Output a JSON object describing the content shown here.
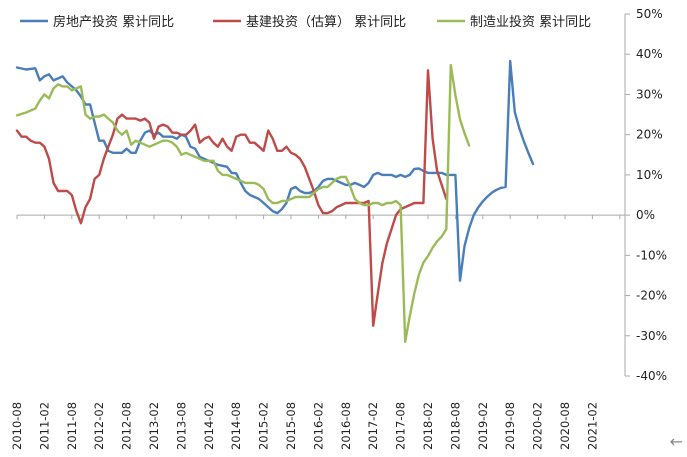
{
  "chart_data": {
    "type": "line",
    "x_ticks": [
      "2010-08",
      "2011-02",
      "2011-08",
      "2012-02",
      "2012-08",
      "2013-02",
      "2013-08",
      "2014-02",
      "2014-08",
      "2015-02",
      "2015-08",
      "2016-02",
      "2016-08",
      "2017-02",
      "2017-08",
      "2018-02",
      "2018-08",
      "2019-02",
      "2019-08",
      "2020-02",
      "2020-08",
      "2021-02"
    ],
    "y_ticks": [
      "50%",
      "40%",
      "30%",
      "20%",
      "10%",
      "0%",
      "-10%",
      "-20%",
      "-30%",
      "-40%"
    ],
    "ylim": [
      -40,
      50
    ],
    "yaxis_position": "right",
    "grid": false,
    "legend_position": "top",
    "series": [
      {
        "name": "房地产投资 累计同比",
        "color": "#4a7ebb",
        "points": [
          [
            0,
            36.7
          ],
          [
            2,
            36.2
          ],
          [
            4,
            36.5
          ],
          [
            5,
            33.5
          ],
          [
            6,
            34.5
          ],
          [
            7,
            35
          ],
          [
            8,
            33.5
          ],
          [
            9,
            34
          ],
          [
            10,
            34.5
          ],
          [
            11,
            33
          ],
          [
            12,
            32
          ],
          [
            13,
            31
          ],
          [
            14,
            29.5
          ],
          [
            15,
            27.5
          ],
          [
            16,
            27.5
          ],
          [
            17,
            23
          ],
          [
            18,
            18.5
          ],
          [
            19,
            18.5
          ],
          [
            20,
            16
          ],
          [
            21,
            15.5
          ],
          [
            22,
            15.5
          ],
          [
            23,
            15.5
          ],
          [
            24,
            16.5
          ],
          [
            25,
            15.5
          ],
          [
            26,
            15.5
          ],
          [
            27,
            18.5
          ],
          [
            28,
            20.5
          ],
          [
            29,
            21
          ],
          [
            30,
            20
          ],
          [
            31,
            20.5
          ],
          [
            32,
            19.5
          ],
          [
            33,
            19.5
          ],
          [
            34,
            19.5
          ],
          [
            35,
            19
          ],
          [
            36,
            20
          ],
          [
            37,
            19.5
          ],
          [
            38,
            17
          ],
          [
            39,
            16.5
          ],
          [
            40,
            14.5
          ],
          [
            42,
            13.5
          ],
          [
            44,
            12.5
          ],
          [
            46,
            12
          ],
          [
            47,
            10.5
          ],
          [
            48,
            10.4
          ],
          [
            49,
            8
          ],
          [
            50,
            6
          ],
          [
            51,
            5
          ],
          [
            52,
            4.5
          ],
          [
            53,
            4
          ],
          [
            54,
            3
          ],
          [
            55,
            2
          ],
          [
            56,
            1
          ],
          [
            57,
            0.5
          ],
          [
            58,
            1.5
          ],
          [
            59,
            3
          ],
          [
            60,
            6.5
          ],
          [
            61,
            7
          ],
          [
            62,
            6
          ],
          [
            63,
            5.5
          ],
          [
            64,
            5.5
          ],
          [
            65,
            6
          ],
          [
            66,
            7
          ],
          [
            67,
            8.5
          ],
          [
            68,
            9
          ],
          [
            69,
            9
          ],
          [
            70,
            8.5
          ],
          [
            71,
            8
          ],
          [
            72,
            7.5
          ],
          [
            73,
            7.5
          ],
          [
            74,
            8
          ],
          [
            75,
            7.5
          ],
          [
            76,
            7
          ],
          [
            77,
            8
          ],
          [
            78,
            10
          ],
          [
            79,
            10.5
          ],
          [
            80,
            10
          ],
          [
            81,
            10
          ],
          [
            82,
            10
          ],
          [
            83,
            9.5
          ],
          [
            84,
            10
          ],
          [
            85,
            9.5
          ],
          [
            86,
            10
          ],
          [
            87,
            11.5
          ],
          [
            88,
            11.6
          ],
          [
            89,
            11
          ],
          [
            90,
            10.5
          ],
          [
            91,
            10.5
          ],
          [
            92,
            10.5
          ],
          [
            93,
            10.5
          ],
          [
            94,
            10
          ],
          [
            95,
            10
          ],
          [
            96,
            10
          ],
          [
            97,
            -16.3
          ],
          [
            98,
            -7.7
          ],
          [
            99,
            -3.3
          ],
          [
            100,
            0
          ],
          [
            101,
            1.9
          ],
          [
            102,
            3.4
          ],
          [
            103,
            4.6
          ],
          [
            104,
            5.6
          ],
          [
            105,
            6.3
          ],
          [
            106,
            6.8
          ],
          [
            107,
            7
          ],
          [
            108,
            38.3
          ],
          [
            109,
            25.6
          ],
          [
            110,
            21.6
          ],
          [
            111,
            18.3
          ],
          [
            112,
            15.4
          ],
          [
            113,
            12.7
          ]
        ]
      },
      {
        "name": "基建投资（估算） 累计同比",
        "color": "#be4b48",
        "points": [
          [
            0,
            21
          ],
          [
            1,
            19.5
          ],
          [
            2,
            19.5
          ],
          [
            3,
            18.5
          ],
          [
            4,
            18
          ],
          [
            5,
            18
          ],
          [
            6,
            17
          ],
          [
            7,
            14
          ],
          [
            8,
            8
          ],
          [
            9,
            6
          ],
          [
            10,
            6
          ],
          [
            11,
            6
          ],
          [
            12,
            5
          ],
          [
            13,
            1
          ],
          [
            14,
            -2
          ],
          [
            15,
            2
          ],
          [
            16,
            4
          ],
          [
            17,
            9
          ],
          [
            18,
            10
          ],
          [
            19,
            14
          ],
          [
            20,
            17
          ],
          [
            21,
            20
          ],
          [
            22,
            24
          ],
          [
            23,
            25
          ],
          [
            24,
            24
          ],
          [
            25,
            24
          ],
          [
            26,
            24
          ],
          [
            27,
            23.5
          ],
          [
            28,
            24
          ],
          [
            29,
            23
          ],
          [
            30,
            19
          ],
          [
            31,
            22
          ],
          [
            32,
            22.5
          ],
          [
            33,
            22
          ],
          [
            34,
            20.5
          ],
          [
            35,
            20.5
          ],
          [
            36,
            20
          ],
          [
            37,
            20
          ],
          [
            38,
            21
          ],
          [
            39,
            22.5
          ],
          [
            40,
            18
          ],
          [
            41,
            19
          ],
          [
            42,
            19.5
          ],
          [
            43,
            18
          ],
          [
            44,
            17
          ],
          [
            45,
            19
          ],
          [
            46,
            17
          ],
          [
            47,
            16
          ],
          [
            48,
            19.5
          ],
          [
            49,
            20
          ],
          [
            50,
            20
          ],
          [
            51,
            18
          ],
          [
            52,
            18
          ],
          [
            53,
            17
          ],
          [
            54,
            16
          ],
          [
            55,
            21
          ],
          [
            56,
            19
          ],
          [
            57,
            16
          ],
          [
            58,
            16
          ],
          [
            59,
            17
          ],
          [
            60,
            15.5
          ],
          [
            61,
            15
          ],
          [
            62,
            14
          ],
          [
            63,
            12
          ],
          [
            64,
            9
          ],
          [
            65,
            6
          ],
          [
            66,
            2.5
          ],
          [
            67,
            0.5
          ],
          [
            68,
            0.5
          ],
          [
            69,
            1
          ],
          [
            70,
            2
          ],
          [
            71,
            2.5
          ],
          [
            72,
            3
          ],
          [
            73,
            3
          ],
          [
            74,
            3
          ],
          [
            75,
            3
          ],
          [
            76,
            3
          ],
          [
            77,
            3.5
          ],
          [
            78,
            -27.5
          ],
          [
            79,
            -19.5
          ],
          [
            80,
            -12
          ],
          [
            81,
            -7
          ],
          [
            82,
            -3.5
          ],
          [
            83,
            0
          ],
          [
            84,
            1.5
          ],
          [
            85,
            2
          ],
          [
            86,
            2.5
          ],
          [
            87,
            3
          ],
          [
            88,
            3
          ],
          [
            89,
            3
          ],
          [
            90,
            36
          ],
          [
            91,
            19
          ],
          [
            92,
            11
          ],
          [
            93,
            7.5
          ],
          [
            94,
            4
          ]
        ]
      },
      {
        "name": "制造业投资 累计同比",
        "color": "#9bbb59",
        "points": [
          [
            0,
            24.8
          ],
          [
            2,
            25.5
          ],
          [
            4,
            26.5
          ],
          [
            5,
            28.5
          ],
          [
            6,
            30
          ],
          [
            7,
            29
          ],
          [
            8,
            31.5
          ],
          [
            9,
            32.5
          ],
          [
            10,
            32
          ],
          [
            11,
            32
          ],
          [
            12,
            31
          ],
          [
            13,
            31.5
          ],
          [
            14,
            32
          ],
          [
            15,
            25
          ],
          [
            16,
            24
          ],
          [
            17,
            24.5
          ],
          [
            18,
            24.5
          ],
          [
            19,
            25
          ],
          [
            20,
            24
          ],
          [
            21,
            23
          ],
          [
            22,
            21
          ],
          [
            23,
            20
          ],
          [
            24,
            21
          ],
          [
            25,
            17.5
          ],
          [
            26,
            18.5
          ],
          [
            27,
            18
          ],
          [
            28,
            17.5
          ],
          [
            29,
            17
          ],
          [
            30,
            17.5
          ],
          [
            31,
            18
          ],
          [
            32,
            18.5
          ],
          [
            33,
            18.5
          ],
          [
            34,
            18
          ],
          [
            35,
            17
          ],
          [
            36,
            15
          ],
          [
            37,
            15.5
          ],
          [
            38,
            15
          ],
          [
            39,
            14.5
          ],
          [
            40,
            14
          ],
          [
            41,
            13.5
          ],
          [
            42,
            13.5
          ],
          [
            43,
            13.5
          ],
          [
            44,
            11
          ],
          [
            45,
            10
          ],
          [
            46,
            10
          ],
          [
            47,
            9.5
          ],
          [
            48,
            9
          ],
          [
            49,
            8.5
          ],
          [
            50,
            8
          ],
          [
            51,
            8
          ],
          [
            52,
            8
          ],
          [
            53,
            7.5
          ],
          [
            54,
            6.5
          ],
          [
            55,
            4
          ],
          [
            56,
            3
          ],
          [
            57,
            3
          ],
          [
            58,
            3.5
          ],
          [
            59,
            3.5
          ],
          [
            60,
            4
          ],
          [
            61,
            4.5
          ],
          [
            62,
            4.5
          ],
          [
            63,
            4.5
          ],
          [
            64,
            4.5
          ],
          [
            65,
            5.5
          ],
          [
            66,
            6.5
          ],
          [
            67,
            7
          ],
          [
            68,
            7
          ],
          [
            69,
            8
          ],
          [
            70,
            9
          ],
          [
            71,
            9.5
          ],
          [
            72,
            9.5
          ],
          [
            73,
            7
          ],
          [
            74,
            4
          ],
          [
            75,
            3
          ],
          [
            76,
            2.5
          ],
          [
            77,
            2.5
          ],
          [
            78,
            3
          ],
          [
            79,
            3
          ],
          [
            80,
            2.5
          ],
          [
            81,
            3
          ],
          [
            82,
            3
          ],
          [
            83,
            3.5
          ],
          [
            84,
            2.5
          ],
          [
            85,
            -31.5
          ],
          [
            86,
            -25.2
          ],
          [
            87,
            -19.5
          ],
          [
            88,
            -14.8
          ],
          [
            89,
            -11.8
          ],
          [
            90,
            -10.2
          ],
          [
            91,
            -8.1
          ],
          [
            92,
            -6.5
          ],
          [
            93,
            -5.3
          ],
          [
            94,
            -3.5
          ],
          [
            95,
            37.3
          ],
          [
            96,
            29.8
          ],
          [
            97,
            23.8
          ],
          [
            98,
            20.4
          ],
          [
            99,
            17.3
          ]
        ]
      }
    ]
  }
}
